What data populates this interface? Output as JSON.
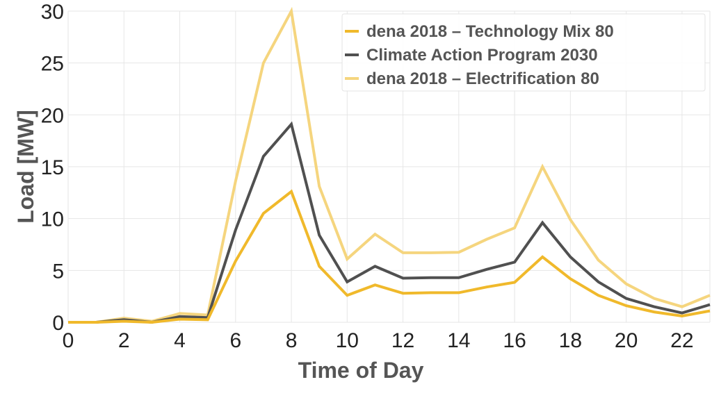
{
  "chart_data": {
    "type": "line",
    "title": "",
    "xlabel": "Time of Day",
    "ylabel": "Load [MW]",
    "xlim": [
      0,
      23
    ],
    "ylim": [
      0,
      30
    ],
    "grid": true,
    "legend_position": "top-right",
    "x_ticks": [
      "0",
      "2",
      "4",
      "6",
      "8",
      "10",
      "12",
      "14",
      "16",
      "18",
      "20",
      "22"
    ],
    "y_ticks": [
      "0",
      "5",
      "10",
      "15",
      "20",
      "25",
      "30"
    ],
    "x": [
      0,
      1,
      2,
      3,
      4,
      5,
      6,
      7,
      8,
      9,
      10,
      11,
      12,
      13,
      14,
      15,
      16,
      17,
      18,
      19,
      20,
      21,
      22,
      23
    ],
    "series": [
      {
        "name": "dena 2018 – Technology Mix 80",
        "color": "#F0B92B",
        "values": [
          0,
          0,
          0.1,
          0,
          0.3,
          0.25,
          5.9,
          10.5,
          12.6,
          5.4,
          2.6,
          3.6,
          2.8,
          2.85,
          2.85,
          3.4,
          3.85,
          6.3,
          4.2,
          2.6,
          1.6,
          1.0,
          0.6,
          1.1
        ]
      },
      {
        "name": "Climate Action Program 2030",
        "color": "#505050",
        "values": [
          0,
          0,
          0.25,
          0,
          0.55,
          0.45,
          8.9,
          16.0,
          19.1,
          8.4,
          3.9,
          5.4,
          4.25,
          4.3,
          4.3,
          5.1,
          5.8,
          9.6,
          6.3,
          3.9,
          2.3,
          1.5,
          0.9,
          1.7
        ]
      },
      {
        "name": "dena 2018 – Electrification 80",
        "color": "#F5D57E",
        "values": [
          0,
          0,
          0.4,
          0.1,
          0.85,
          0.7,
          13.6,
          25.0,
          30.0,
          13.1,
          6.1,
          8.5,
          6.7,
          6.7,
          6.75,
          8.0,
          9.1,
          15.0,
          9.9,
          6.0,
          3.7,
          2.3,
          1.5,
          2.6
        ]
      }
    ]
  }
}
